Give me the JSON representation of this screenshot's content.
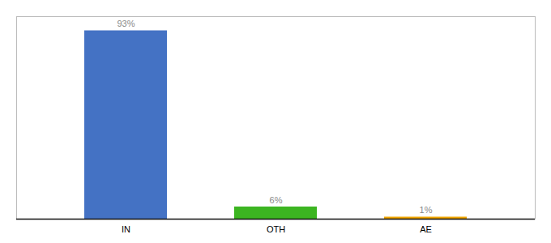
{
  "chart_data": {
    "type": "bar",
    "categories": [
      "IN",
      "OTH",
      "AE"
    ],
    "values": [
      93,
      6,
      1
    ],
    "value_labels": [
      "93%",
      "6%",
      "1%"
    ],
    "colors": [
      "#4472c4",
      "#3cb521",
      "#f0a500"
    ],
    "ylim": [
      0,
      100
    ],
    "data_labels": true,
    "tick_labels": "x"
  }
}
